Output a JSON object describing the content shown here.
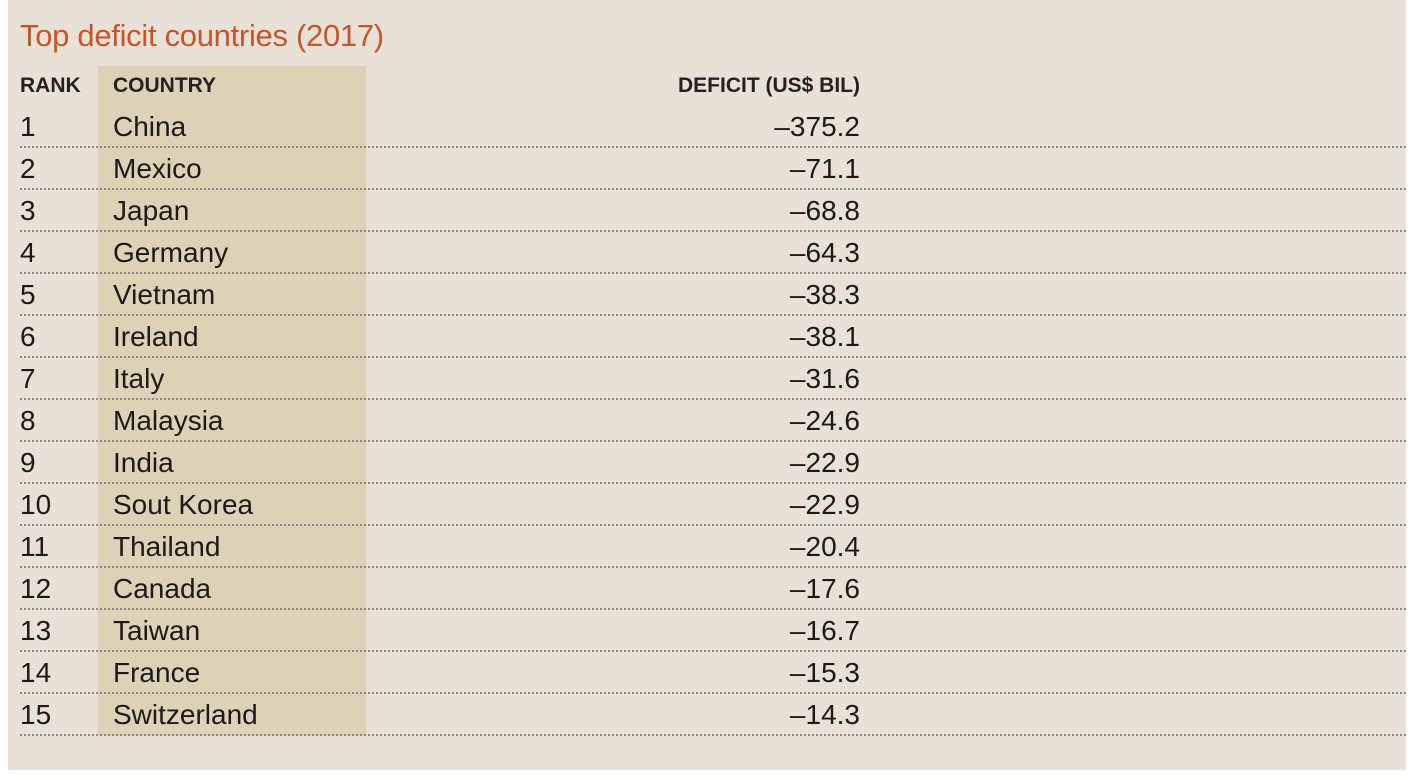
{
  "title": "Top deficit countries (2017)",
  "headers": {
    "rank": "RANK",
    "country": "COUNTRY",
    "deficit": "DEFICIT (US$ BIL)"
  },
  "colors": {
    "background": "#e8e1d5",
    "country_band": "#ddd2b6",
    "title": "#c8552a"
  },
  "chart_data": {
    "type": "table",
    "title": "Top deficit countries (2017)",
    "columns": [
      "RANK",
      "COUNTRY",
      "DEFICIT (US$ BIL)"
    ],
    "rows": [
      {
        "rank": "1",
        "country": "China",
        "deficit": "–375.2"
      },
      {
        "rank": "2",
        "country": "Mexico",
        "deficit": "–71.1"
      },
      {
        "rank": "3",
        "country": "Japan",
        "deficit": "–68.8"
      },
      {
        "rank": "4",
        "country": "Germany",
        "deficit": "–64.3"
      },
      {
        "rank": "5",
        "country": "Vietnam",
        "deficit": "–38.3"
      },
      {
        "rank": "6",
        "country": "Ireland",
        "deficit": "–38.1"
      },
      {
        "rank": "7",
        "country": "Italy",
        "deficit": "–31.6"
      },
      {
        "rank": "8",
        "country": "Malaysia",
        "deficit": "–24.6"
      },
      {
        "rank": "9",
        "country": "India",
        "deficit": "–22.9"
      },
      {
        "rank": "10",
        "country": "Sout Korea",
        "deficit": "–22.9"
      },
      {
        "rank": "11",
        "country": "Thailand",
        "deficit": "–20.4"
      },
      {
        "rank": "12",
        "country": "Canada",
        "deficit": "–17.6"
      },
      {
        "rank": "13",
        "country": "Taiwan",
        "deficit": "–16.7"
      },
      {
        "rank": "14",
        "country": "France",
        "deficit": "–15.3"
      },
      {
        "rank": "15",
        "country": "Switzerland",
        "deficit": "–14.3"
      }
    ]
  }
}
